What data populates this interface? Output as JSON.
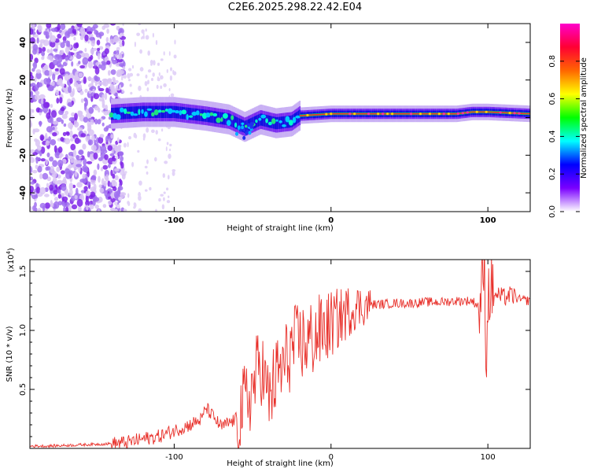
{
  "title": "C2E6.2025.298.22.42.E04",
  "colors": {
    "snr_line": "#e8302a",
    "frame": "#000000"
  },
  "chart_data": [
    {
      "type": "heatmap",
      "name": "spectrogram",
      "title": "C2E6.2025.298.22.42.E04",
      "xlabel": "Height of straight line (km)",
      "ylabel": "Frequency (Hz)",
      "xlim": [
        -192,
        127
      ],
      "ylim": [
        -50,
        50
      ],
      "xticks": [
        -100,
        0,
        100
      ],
      "yticks": [
        -40,
        -20,
        0,
        20,
        40
      ],
      "colorbar": {
        "label": "Normalized spectral amplitude",
        "range": [
          0,
          1
        ],
        "ticks": [
          "0.0",
          "0.2",
          "0.4",
          "0.6",
          "0.8"
        ],
        "colormap": [
          "#ffffff",
          "#7a00ff",
          "#0000ff",
          "#00ffff",
          "#00ff00",
          "#ffff00",
          "#ff6600",
          "#ff0033",
          "#ff00cc"
        ]
      },
      "noise_region_xmax": -138,
      "ridge_center_hz": [
        {
          "x": -140,
          "f": 2
        },
        {
          "x": -120,
          "f": 3
        },
        {
          "x": -100,
          "f": 3
        },
        {
          "x": -80,
          "f": 1
        },
        {
          "x": -65,
          "f": -1
        },
        {
          "x": -55,
          "f": -5
        },
        {
          "x": -45,
          "f": -1
        },
        {
          "x": -35,
          "f": -3
        },
        {
          "x": -25,
          "f": -2
        },
        {
          "x": -20,
          "f": 1
        },
        {
          "x": 0,
          "f": 2
        },
        {
          "x": 40,
          "f": 2
        },
        {
          "x": 80,
          "f": 2
        },
        {
          "x": 90,
          "f": 3
        },
        {
          "x": 100,
          "f": 3
        },
        {
          "x": 127,
          "f": 2
        }
      ]
    },
    {
      "type": "line",
      "name": "snr",
      "xlabel": "Height of straight line (km)",
      "ylabel": "SNR (10 * v/v)",
      "scale_label": "(x10",
      "scale_exponent": "4",
      "xlim": [
        -192,
        127
      ],
      "ylim": [
        0,
        1.6
      ],
      "xticks": [
        -100,
        0,
        100
      ],
      "yticks": [
        0.5,
        1.0,
        1.5
      ],
      "ytick_labels": [
        "0.5",
        "1.0",
        "1.5"
      ],
      "series": [
        {
          "name": "SNR",
          "x": [
            -192,
            -180,
            -160,
            -140,
            -130,
            -120,
            -110,
            -100,
            -90,
            -82,
            -80,
            -70,
            -60,
            -50,
            -45,
            -40,
            -35,
            -30,
            -25,
            -20,
            -15,
            -10,
            -5,
            0,
            5,
            10,
            15,
            20,
            25,
            30,
            40,
            50,
            60,
            70,
            80,
            90,
            95,
            97,
            98,
            99,
            100,
            102,
            105,
            110,
            115,
            120,
            127
          ],
          "values": [
            0.02,
            0.02,
            0.03,
            0.04,
            0.05,
            0.08,
            0.1,
            0.15,
            0.2,
            0.25,
            0.35,
            0.18,
            0.25,
            0.5,
            0.75,
            0.4,
            0.6,
            0.7,
            0.85,
            0.9,
            0.9,
            0.95,
            1.0,
            1.05,
            1.1,
            1.15,
            1.2,
            1.2,
            1.22,
            1.22,
            1.23,
            1.23,
            1.24,
            1.24,
            1.25,
            1.25,
            1.2,
            1.45,
            1.6,
            0.6,
            1.3,
            1.35,
            1.3,
            1.28,
            1.3,
            1.26,
            1.25
          ]
        }
      ]
    }
  ]
}
